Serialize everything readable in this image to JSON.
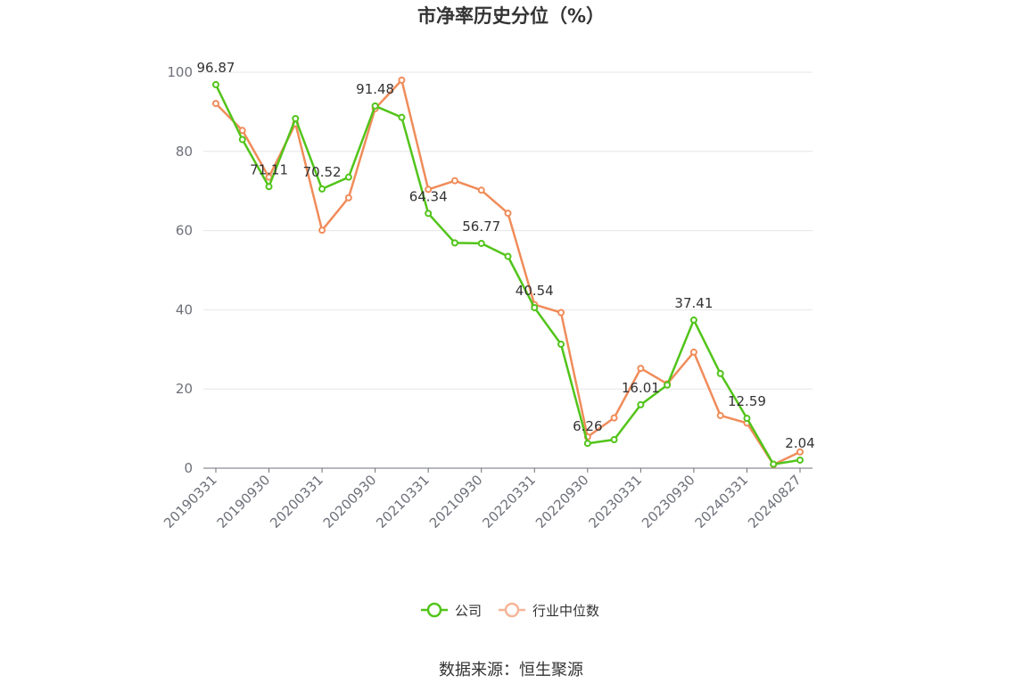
{
  "chart_data": {
    "type": "line",
    "title": "市净率历史分位（%）",
    "xlabel": "",
    "ylabel": "",
    "ylim": [
      0,
      100
    ],
    "yticks": [
      0,
      20,
      40,
      60,
      80,
      100
    ],
    "grid": true,
    "legend_position": "bottom",
    "x": [
      "20190331",
      "20190630",
      "20190930",
      "20191231",
      "20200331",
      "20200630",
      "20200930",
      "20201231",
      "20210331",
      "20210630",
      "20210930",
      "20211231",
      "20220331",
      "20220630",
      "20220930",
      "20221231",
      "20230331",
      "20230630",
      "20230930",
      "20231231",
      "20240331",
      "20240630",
      "20240827"
    ],
    "xtick_labels": [
      "20190331",
      "20190930",
      "20200331",
      "20200930",
      "20210331",
      "20210930",
      "20220331",
      "20220930",
      "20230331",
      "20230930",
      "20240331",
      "20240827"
    ],
    "series": [
      {
        "name": "公司",
        "color": "#52c41a",
        "values": [
          96.87,
          83.0,
          71.11,
          88.3,
          70.52,
          73.5,
          91.48,
          88.6,
          64.34,
          56.9,
          56.77,
          53.5,
          40.54,
          31.3,
          6.26,
          7.2,
          16.01,
          21.0,
          37.41,
          23.9,
          12.59,
          1.0,
          2.04
        ],
        "labels": {
          "0": "96.87",
          "2": "71.11",
          "4": "70.52",
          "6": "91.48",
          "8": "64.34",
          "10": "56.77",
          "12": "40.54",
          "14": "6.26",
          "16": "16.01",
          "18": "37.41",
          "20": "12.59",
          "22": "2.04"
        }
      },
      {
        "name": "行业中位数",
        "color": "#f08c5a",
        "values": [
          92.1,
          85.3,
          73.5,
          87.0,
          60.1,
          68.3,
          90.8,
          98.0,
          70.4,
          72.6,
          70.2,
          64.4,
          41.3,
          39.3,
          7.9,
          12.7,
          25.2,
          21.3,
          29.3,
          13.3,
          11.4,
          0.9,
          4.1
        ]
      }
    ]
  },
  "source_text": "数据来源：恒生聚源"
}
